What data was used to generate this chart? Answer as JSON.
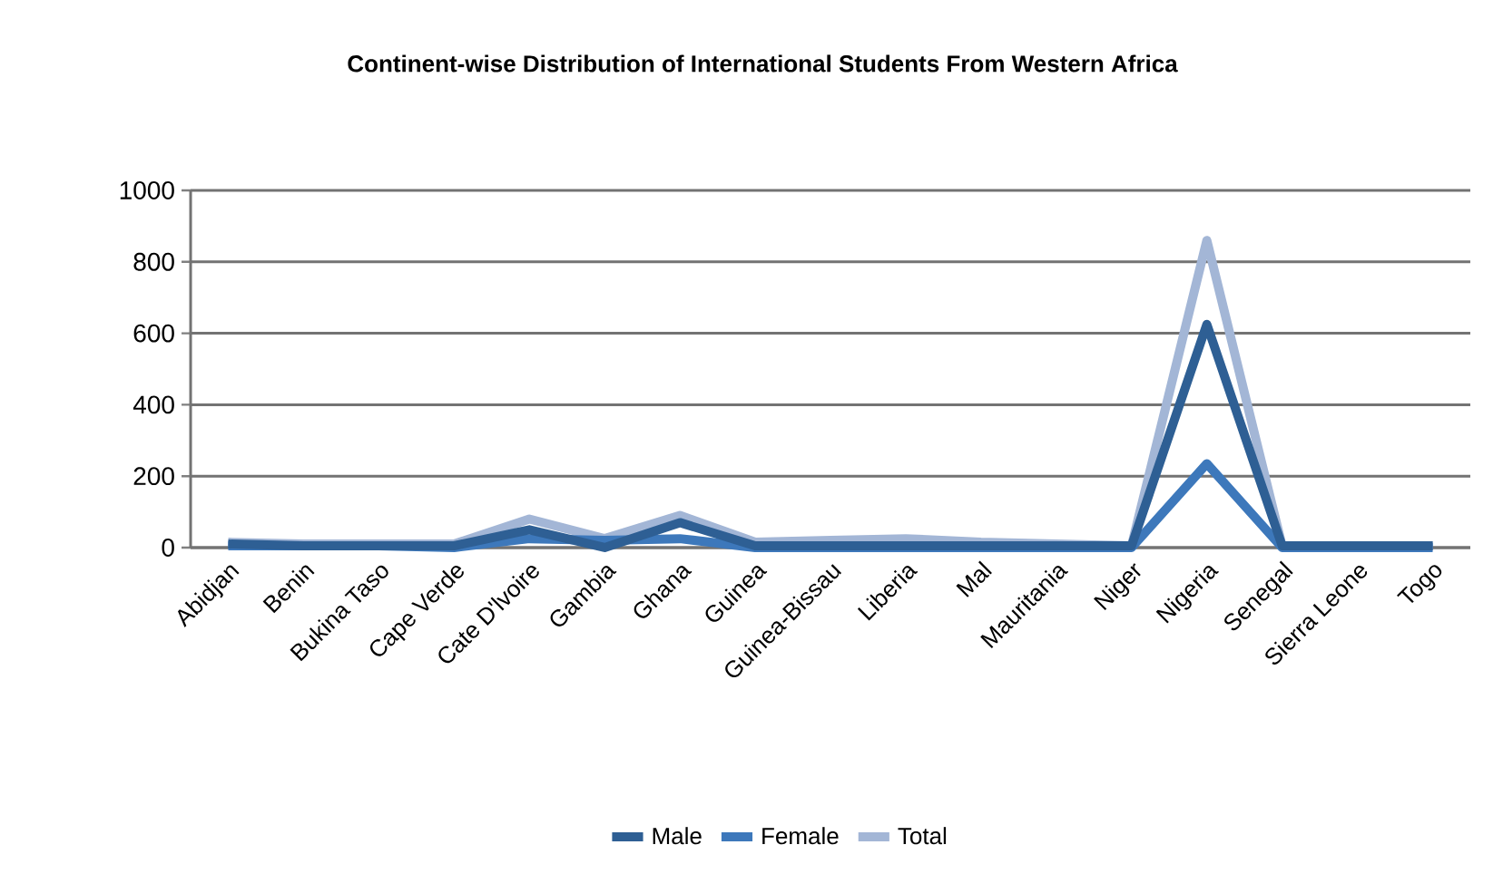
{
  "chart_data": {
    "type": "line",
    "title": "Continent-wise Distribution of International Students From Western Africa",
    "categories": [
      "Abidjan",
      "Benin",
      "Bukina Taso",
      "Cape Verde",
      "Cate D'lvoire",
      "Gambia",
      "Ghana",
      "Guinea",
      "Guinea-Bissau",
      "Liberia",
      "Mal",
      "Mauritania",
      "Niger",
      "Nigeria",
      "Senegal",
      "Sierra Leone",
      "Togo"
    ],
    "series": [
      {
        "name": "Male",
        "color": "#2e5f94",
        "values": [
          10,
          5,
          5,
          5,
          50,
          0,
          70,
          5,
          5,
          5,
          5,
          5,
          5,
          625,
          5,
          5,
          5
        ]
      },
      {
        "name": "Female",
        "color": "#3d78bb",
        "values": [
          5,
          5,
          5,
          0,
          25,
          20,
          25,
          0,
          0,
          0,
          0,
          0,
          0,
          235,
          0,
          0,
          0
        ]
      },
      {
        "name": "Total",
        "color": "#a3b6d6",
        "values": [
          15,
          10,
          10,
          10,
          80,
          25,
          90,
          15,
          20,
          25,
          15,
          10,
          5,
          860,
          5,
          null,
          5
        ]
      }
    ],
    "ylim": [
      0,
      1000
    ],
    "yticks": [
      0,
      200,
      400,
      600,
      800,
      1000
    ],
    "grid": "y",
    "legend": "bottom",
    "marker": "none",
    "line_style": "solid"
  }
}
